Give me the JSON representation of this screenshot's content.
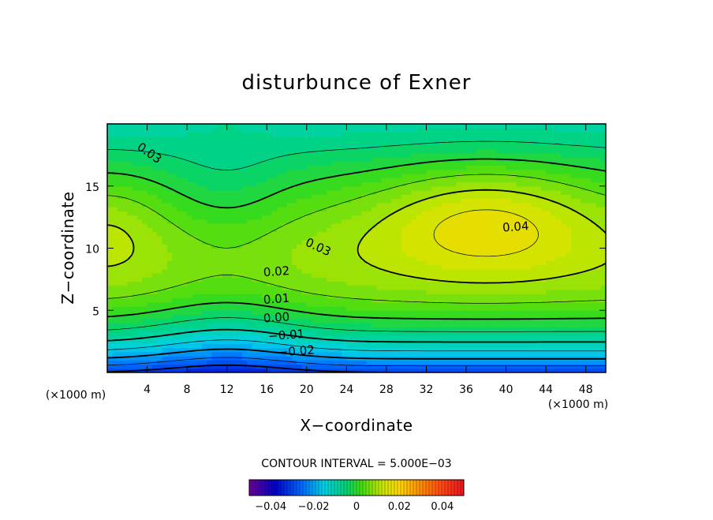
{
  "chart_data": {
    "type": "heatmap",
    "title": "disturbunce of Exner",
    "xlabel": "X−coordinate",
    "ylabel": "Z−coordinate",
    "x_unit": "(×1000 m)",
    "y_unit": "(×1000 m)",
    "xlim": [
      0,
      50
    ],
    "ylim": [
      0,
      20
    ],
    "xticks": [
      4,
      8,
      12,
      16,
      20,
      24,
      28,
      32,
      36,
      40,
      44,
      48
    ],
    "yticks": [
      5,
      10,
      15
    ],
    "contour_interval_text": "CONTOUR INTERVAL = 5.000E−03",
    "contour_interval": 0.005,
    "contour_labels": [
      {
        "text": "0.03",
        "x": 4,
        "z": 17.4
      },
      {
        "text": "0.03",
        "x": 21,
        "z": 9.8
      },
      {
        "text": "0.04",
        "x": 41,
        "z": 11.4
      },
      {
        "text": "0.02",
        "x": 17,
        "z": 7.8
      },
      {
        "text": "0.01",
        "x": 17,
        "z": 5.6
      },
      {
        "text": "0.00",
        "x": 17,
        "z": 4.1
      },
      {
        "text": "−0.01",
        "x": 18,
        "z": 2.7
      },
      {
        "text": "−0.02",
        "x": 19,
        "z": 1.4
      }
    ],
    "colorbar": {
      "range": [
        -0.05,
        0.05
      ],
      "tick_labels": [
        "−0.04",
        "−0.02",
        "0",
        "0.02",
        "0.04"
      ],
      "tick_values": [
        -0.04,
        -0.02,
        0,
        0.02,
        0.04
      ]
    },
    "colors": {
      "low": "#0000cc",
      "zero": "#33dd22",
      "high": "#ff2020"
    }
  }
}
